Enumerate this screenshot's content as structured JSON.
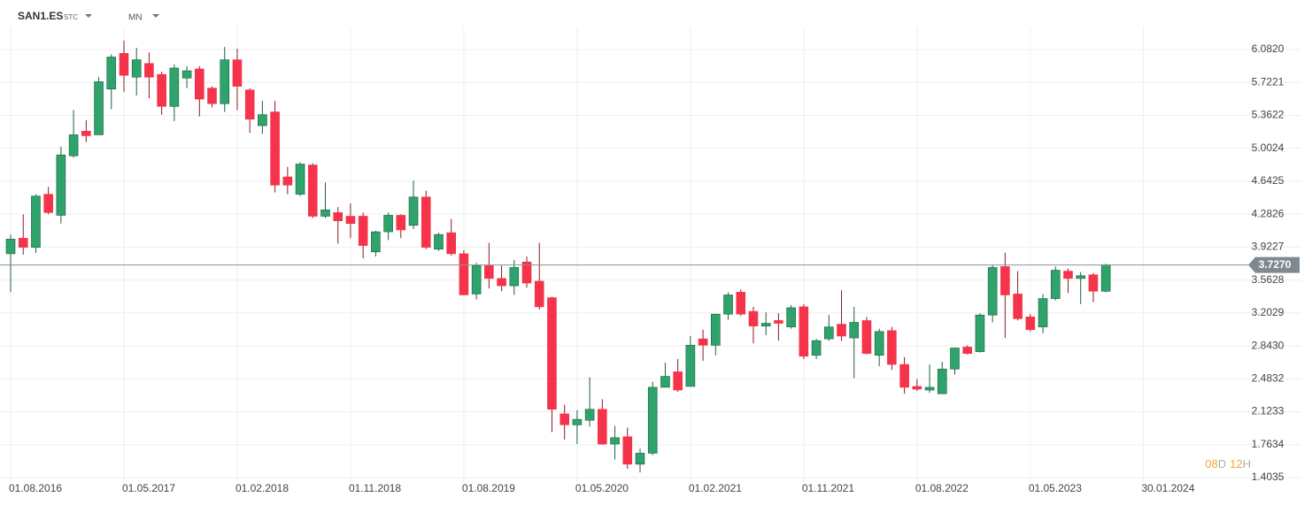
{
  "header": {
    "symbol": "SAN1.ES",
    "symbol_tag": "STC",
    "interval": "MN"
  },
  "chart_data": {
    "type": "candlestick",
    "x": [
      "01.08.2016",
      "01.09.2016",
      "01.10.2016",
      "01.11.2016",
      "01.12.2016",
      "01.01.2017",
      "01.02.2017",
      "01.03.2017",
      "01.04.2017",
      "01.05.2017",
      "01.06.2017",
      "01.07.2017",
      "01.08.2017",
      "01.09.2017",
      "01.10.2017",
      "01.11.2017",
      "01.12.2017",
      "01.01.2018",
      "01.02.2018",
      "01.03.2018",
      "01.04.2018",
      "01.05.2018",
      "01.06.2018",
      "01.07.2018",
      "01.08.2018",
      "01.09.2018",
      "01.10.2018",
      "01.11.2018",
      "01.12.2018",
      "01.01.2019",
      "01.02.2019",
      "01.03.2019",
      "01.04.2019",
      "01.05.2019",
      "01.06.2019",
      "01.07.2019",
      "01.08.2019",
      "01.09.2019",
      "01.10.2019",
      "01.11.2019",
      "01.12.2019",
      "01.01.2020",
      "01.02.2020",
      "01.03.2020",
      "01.04.2020",
      "01.05.2020",
      "01.06.2020",
      "01.07.2020",
      "01.08.2020",
      "01.09.2020",
      "01.10.2020",
      "01.11.2020",
      "01.12.2020",
      "01.01.2021",
      "01.02.2021",
      "01.03.2021",
      "01.04.2021",
      "01.05.2021",
      "01.06.2021",
      "01.07.2021",
      "01.08.2021",
      "01.09.2021",
      "01.10.2021",
      "01.11.2021",
      "01.12.2021",
      "01.01.2022",
      "01.02.2022",
      "01.03.2022",
      "01.04.2022",
      "01.05.2022",
      "01.06.2022",
      "01.07.2022",
      "01.08.2022",
      "01.09.2022",
      "01.10.2022",
      "01.11.2022",
      "01.12.2022",
      "01.01.2023",
      "01.02.2023",
      "01.03.2023",
      "01.04.2023",
      "01.05.2023",
      "01.06.2023",
      "01.07.2023",
      "01.08.2023",
      "01.09.2023",
      "01.10.2023",
      "01.11.2023"
    ],
    "open": [
      3.85,
      4.02,
      3.92,
      4.5,
      4.27,
      4.92,
      5.19,
      5.15,
      5.65,
      6.04,
      5.78,
      5.93,
      5.81,
      5.46,
      5.77,
      5.87,
      5.66,
      5.49,
      5.97,
      5.64,
      5.25,
      5.4,
      4.69,
      4.5,
      4.82,
      4.26,
      4.3,
      4.26,
      4.26,
      3.87,
      4.09,
      4.27,
      4.16,
      4.47,
      3.9,
      4.08,
      3.85,
      3.41,
      3.72,
      3.58,
      3.5,
      3.76,
      3.55,
      3.37,
      2.1,
      1.98,
      2.03,
      2.15,
      1.77,
      1.85,
      1.55,
      1.67,
      2.39,
      2.56,
      2.4,
      2.92,
      2.85,
      3.19,
      3.43,
      3.22,
      3.06,
      3.12,
      3.05,
      3.27,
      2.74,
      2.92,
      3.08,
      2.93,
      3.12,
      2.74,
      3.01,
      2.64,
      2.4,
      2.36,
      2.32,
      2.59,
      2.83,
      2.78,
      3.18,
      3.71,
      3.41,
      3.16,
      3.05,
      3.36,
      3.66,
      3.58,
      3.62,
      3.44
    ],
    "high": [
      4.06,
      4.28,
      4.5,
      4.58,
      5.02,
      5.42,
      5.31,
      5.78,
      6.03,
      6.18,
      6.1,
      6.05,
      5.84,
      5.92,
      5.9,
      5.9,
      5.68,
      6.11,
      6.09,
      5.66,
      5.52,
      5.52,
      4.8,
      4.85,
      4.84,
      4.63,
      4.36,
      4.4,
      4.3,
      4.1,
      4.3,
      4.28,
      4.65,
      4.54,
      4.08,
      4.23,
      3.89,
      3.75,
      3.97,
      3.72,
      3.78,
      3.82,
      3.97,
      3.38,
      2.2,
      2.14,
      2.5,
      2.26,
      1.97,
      1.95,
      1.72,
      2.45,
      2.66,
      2.7,
      2.95,
      3.02,
      3.19,
      3.43,
      3.46,
      3.27,
      3.21,
      3.2,
      3.29,
      3.3,
      2.92,
      3.18,
      3.45,
      3.27,
      3.16,
      3.03,
      3.05,
      2.72,
      2.48,
      2.64,
      2.67,
      2.82,
      2.85,
      3.2,
      3.73,
      3.86,
      3.66,
      3.19,
      3.41,
      3.71,
      3.69,
      3.65,
      3.64,
      3.74
    ],
    "low": [
      3.43,
      3.84,
      3.86,
      4.28,
      4.18,
      4.9,
      5.07,
      5.15,
      5.43,
      5.62,
      5.58,
      5.55,
      5.37,
      5.3,
      5.66,
      5.35,
      5.45,
      5.4,
      5.42,
      5.17,
      5.16,
      4.52,
      4.5,
      4.48,
      4.24,
      4.24,
      3.96,
      4.02,
      3.8,
      3.82,
      4.0,
      4.02,
      4.12,
      3.9,
      3.88,
      3.83,
      3.4,
      3.35,
      3.47,
      3.44,
      3.4,
      3.48,
      3.24,
      1.9,
      1.82,
      1.77,
      1.96,
      1.76,
      1.6,
      1.5,
      1.46,
      1.65,
      2.39,
      2.34,
      2.4,
      2.68,
      2.74,
      3.13,
      3.17,
      2.87,
      2.96,
      2.9,
      3.03,
      2.7,
      2.7,
      2.9,
      2.9,
      2.49,
      2.75,
      2.62,
      2.58,
      2.32,
      2.35,
      2.33,
      2.32,
      2.53,
      2.75,
      2.77,
      3.1,
      2.93,
      3.12,
      3.0,
      2.98,
      3.34,
      3.42,
      3.3,
      3.32,
      3.43
    ],
    "close": [
      4.01,
      3.92,
      4.48,
      4.3,
      4.93,
      5.15,
      5.14,
      5.73,
      6.0,
      5.8,
      5.97,
      5.78,
      5.46,
      5.88,
      5.85,
      5.54,
      5.49,
      5.97,
      5.68,
      5.32,
      5.37,
      4.6,
      4.6,
      4.83,
      4.26,
      4.33,
      4.21,
      4.18,
      3.94,
      4.09,
      4.27,
      4.11,
      4.47,
      3.92,
      4.06,
      3.85,
      3.4,
      3.72,
      3.58,
      3.5,
      3.7,
      3.53,
      3.27,
      2.15,
      1.98,
      2.04,
      2.15,
      1.77,
      1.84,
      1.55,
      1.67,
      2.39,
      2.51,
      2.36,
      2.85,
      2.85,
      3.19,
      3.4,
      3.19,
      3.06,
      3.09,
      3.09,
      3.26,
      2.73,
      2.9,
      3.05,
      2.95,
      3.1,
      2.76,
      3.0,
      2.64,
      2.39,
      2.37,
      2.39,
      2.59,
      2.82,
      2.76,
      3.18,
      3.7,
      3.4,
      3.14,
      3.02,
      3.36,
      3.67,
      3.58,
      3.61,
      3.44,
      3.73
    ],
    "up_color": "#2ea36b",
    "down_color": "#f5334a",
    "ylim": [
      1.4035,
      6.082
    ],
    "yticks": [
      1.4035,
      1.7634,
      2.1233,
      2.4832,
      {
        "value": 2.843,
        "label": "2.8430"
      },
      3.2029,
      3.5628,
      3.9227,
      4.2826,
      4.6425,
      5.0024,
      5.3622,
      5.7221,
      {
        "value": 6.082,
        "label": "6.0820"
      }
    ],
    "xticks": [
      "01.08.2016",
      "01.05.2017",
      "01.02.2018",
      "01.11.2018",
      "01.08.2019",
      "01.05.2020",
      "01.02.2021",
      "01.11.2021",
      "01.08.2022",
      "01.05.2023",
      "30.01.2024"
    ],
    "grid": true,
    "last_price": {
      "value": 3.727,
      "label": "3.7270"
    },
    "countdown": [
      "08",
      "D",
      "12",
      "H"
    ]
  }
}
